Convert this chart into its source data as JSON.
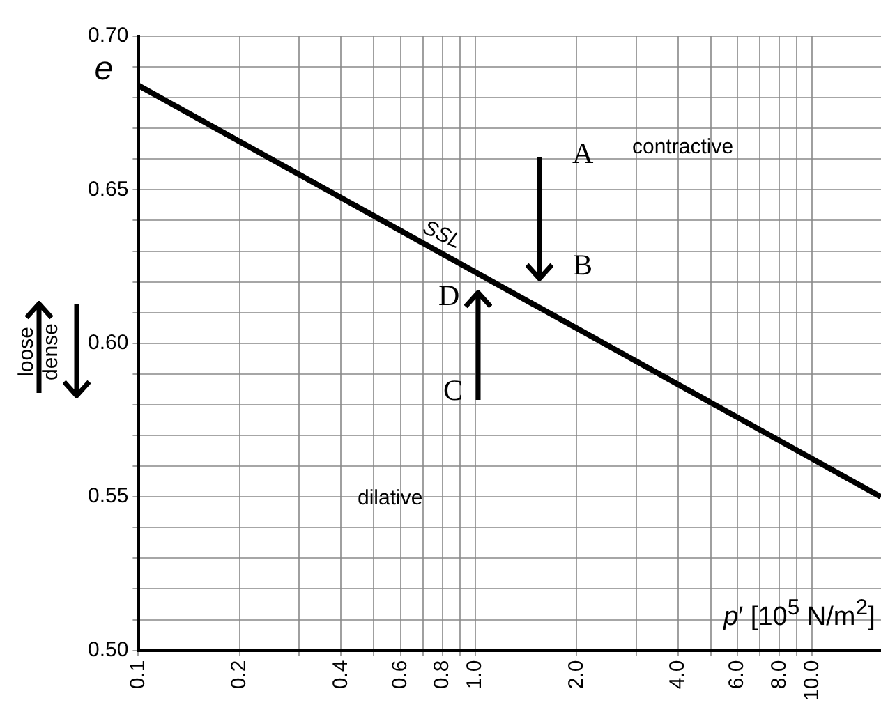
{
  "chart_data": {
    "type": "line",
    "xlabel": "p′ [10$^{5}$ N/m$^{2}$]",
    "ylabel": "e",
    "x": [
      0.1,
      16
    ],
    "series": [
      {
        "color": "#000000",
        "values": [
          0.684,
          0.55
        ]
      }
    ],
    "log": "x",
    "xlim": [
      0.1,
      16
    ],
    "xticks": [
      0.1,
      0.2,
      {
        "value": 0.3,
        "label": null
      },
      0.4,
      {
        "value": 0.5,
        "label": null
      },
      0.6,
      {
        "value": 0.7,
        "label": null
      },
      0.8,
      {
        "value": 0.9,
        "label": null
      },
      {
        "value": 1,
        "label": "1.0"
      },
      {
        "value": 2,
        "label": "2.0"
      },
      {
        "value": 3,
        "label": null
      },
      {
        "value": 4,
        "label": "4.0"
      },
      {
        "value": 5,
        "label": null
      },
      {
        "value": 6,
        "label": "6.0"
      },
      {
        "value": 7,
        "label": null
      },
      {
        "value": 8,
        "label": "8.0"
      },
      {
        "value": 9,
        "label": null
      },
      {
        "value": 10,
        "label": "10.0"
      }
    ],
    "ylim": [
      0.5,
      0.7
    ],
    "yticks": [
      {
        "value": 0.5,
        "label": "0.50"
      },
      {
        "value": 0.51,
        "label": null
      },
      {
        "value": 0.52,
        "label": null
      },
      {
        "value": 0.53,
        "label": null
      },
      {
        "value": 0.54,
        "label": null
      },
      {
        "value": 0.55,
        "label": "0.55"
      },
      {
        "value": 0.56,
        "label": null
      },
      {
        "value": 0.57,
        "label": null
      },
      {
        "value": 0.58,
        "label": null
      },
      {
        "value": 0.59,
        "label": null
      },
      {
        "value": 0.6,
        "label": "0.60"
      },
      {
        "value": 0.61,
        "label": null
      },
      {
        "value": 0.62,
        "label": null
      },
      {
        "value": 0.63,
        "label": null
      },
      {
        "value": 0.64,
        "label": null
      },
      {
        "value": 0.65,
        "label": "0.65"
      },
      {
        "value": 0.66,
        "label": null
      },
      {
        "value": 0.67,
        "label": null
      },
      {
        "value": 0.68,
        "label": null
      },
      {
        "value": 0.69,
        "label": null
      },
      {
        "value": 0.7,
        "label": "0.70"
      }
    ],
    "grid": true,
    "legend": false,
    "marker": "none",
    "line_style": "solid",
    "annotations": [
      "A",
      "B",
      "C",
      "D",
      {
        "text": "SSL",
        "x": 0.8,
        "y": 0.627
      },
      "contractive",
      "dilative",
      "loose",
      "dense"
    ]
  }
}
